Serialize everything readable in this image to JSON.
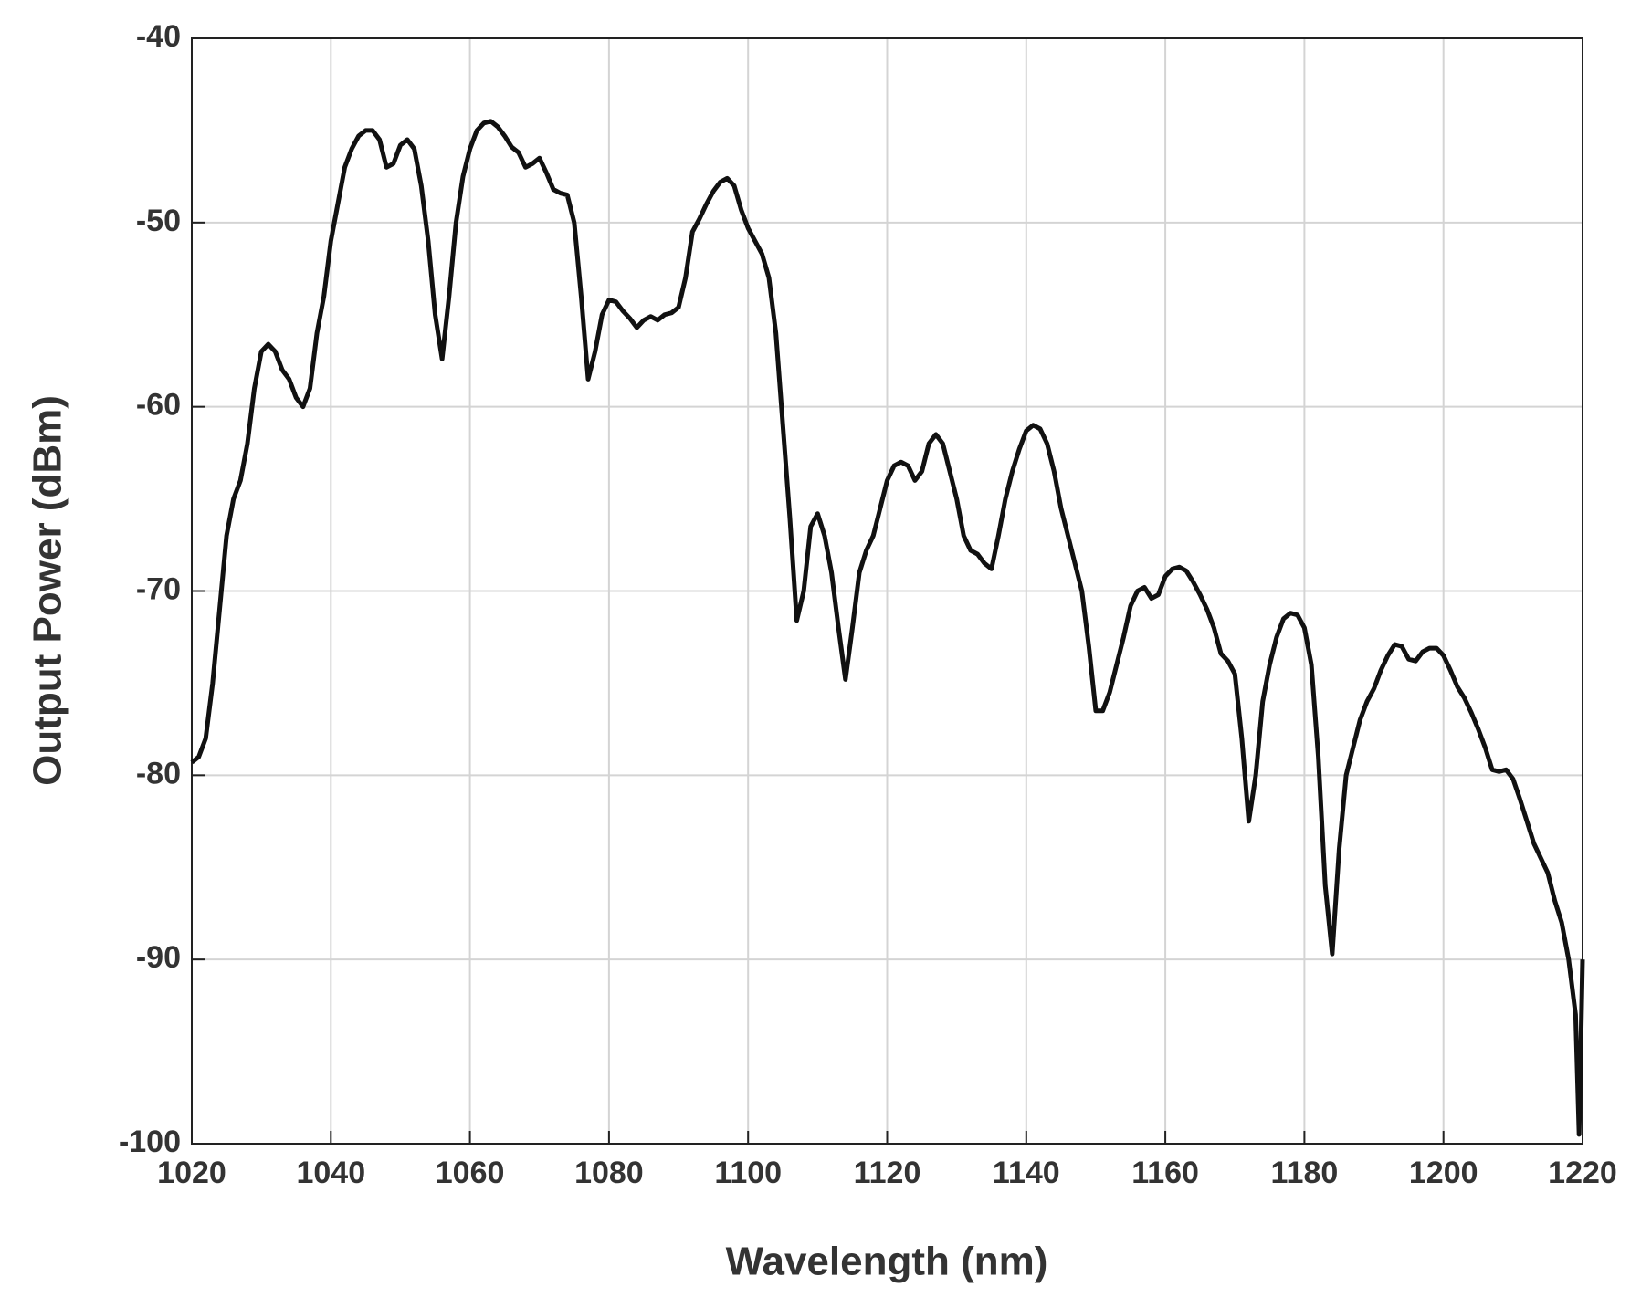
{
  "chart_data": {
    "type": "line",
    "xlabel": "Wavelength (nm)",
    "ylabel": "Output Power (dBm)",
    "x": [
      1020,
      1021,
      1022,
      1023,
      1024,
      1025,
      1026,
      1027,
      1028,
      1029,
      1030,
      1031,
      1032,
      1033,
      1034,
      1035,
      1036,
      1037,
      1038,
      1039,
      1040,
      1041,
      1042,
      1043,
      1044,
      1045,
      1046,
      1047,
      1048,
      1049,
      1050,
      1051,
      1052,
      1053,
      1054,
      1055,
      1056,
      1057,
      1058,
      1059,
      1060,
      1061,
      1062,
      1063,
      1064,
      1065,
      1066,
      1067,
      1068,
      1069,
      1070,
      1071,
      1072,
      1073,
      1074,
      1075,
      1076,
      1077,
      1078,
      1079,
      1080,
      1081,
      1082,
      1083,
      1084,
      1085,
      1086,
      1087,
      1088,
      1089,
      1090,
      1091,
      1092,
      1093,
      1094,
      1095,
      1096,
      1097,
      1098,
      1099,
      1100,
      1101,
      1102,
      1103,
      1104,
      1105,
      1106,
      1107,
      1108,
      1109,
      1110,
      1111,
      1112,
      1113,
      1114,
      1115,
      1116,
      1117,
      1118,
      1119,
      1120,
      1121,
      1122,
      1123,
      1124,
      1125,
      1126,
      1127,
      1128,
      1129,
      1130,
      1131,
      1132,
      1133,
      1134,
      1135,
      1136,
      1137,
      1138,
      1139,
      1140,
      1141,
      1142,
      1143,
      1144,
      1145,
      1146,
      1147,
      1148,
      1149,
      1150,
      1151,
      1152,
      1153,
      1154,
      1155,
      1156,
      1157,
      1158,
      1159,
      1160,
      1161,
      1162,
      1163,
      1164,
      1165,
      1166,
      1167,
      1168,
      1169,
      1170,
      1171,
      1172,
      1173,
      1174,
      1175,
      1176,
      1177,
      1178,
      1179,
      1180,
      1181,
      1182,
      1183,
      1184,
      1185,
      1186,
      1187,
      1188,
      1189,
      1190,
      1191,
      1192,
      1193,
      1194,
      1195,
      1196,
      1197,
      1198,
      1199,
      1200,
      1201,
      1202,
      1203,
      1204,
      1205,
      1206,
      1207,
      1208,
      1209,
      1210,
      1211,
      1212,
      1213,
      1214,
      1215,
      1216,
      1217,
      1218,
      1219,
      1219.5,
      1220
    ],
    "series": [
      {
        "color": "#111111",
        "values": [
          -79.3,
          -79,
          -78,
          -75,
          -71,
          -67,
          -65,
          -64,
          -62,
          -59,
          -57,
          -56.6,
          -57,
          -58,
          -58.5,
          -59.5,
          -60,
          -59,
          -56,
          -54,
          -51,
          -49,
          -47,
          -46,
          -45.3,
          -45,
          -45,
          -45.5,
          -47,
          -46.8,
          -45.8,
          -45.5,
          -46,
          -48,
          -51,
          -55,
          -57.4,
          -54,
          -50,
          -47.5,
          -46,
          -45,
          -44.6,
          -44.5,
          -44.8,
          -45.3,
          -45.9,
          -46.2,
          -47,
          -46.8,
          -46.5,
          -47.3,
          -48.2,
          -48.4,
          -48.5,
          -50,
          -54,
          -58.5,
          -57,
          -55,
          -54.2,
          -54.3,
          -54.8,
          -55.2,
          -55.7,
          -55.3,
          -55.1,
          -55.3,
          -55,
          -54.9,
          -54.6,
          -53,
          -50.5,
          -49.8,
          -49,
          -48.3,
          -47.8,
          -47.6,
          -48,
          -49.3,
          -50.3,
          -51,
          -51.7,
          -53,
          -56,
          -61,
          -66,
          -71.6,
          -70,
          -66.5,
          -65.8,
          -67,
          -69,
          -72,
          -74.8,
          -72,
          -69,
          -67.8,
          -67,
          -65.5,
          -64,
          -63.2,
          -63,
          -63.2,
          -64,
          -63.5,
          -62,
          -61.5,
          -62,
          -63.5,
          -65,
          -67,
          -67.8,
          -68,
          -68.5,
          -68.8,
          -67,
          -65,
          -63.5,
          -62.3,
          -61.3,
          -61,
          -61.2,
          -62,
          -63.5,
          -65.5,
          -67,
          -68.5,
          -70,
          -73,
          -76.5,
          -76.5,
          -75.5,
          -74,
          -72.5,
          -70.8,
          -70,
          -69.8,
          -70.4,
          -70.2,
          -69.2,
          -68.8,
          -68.7,
          -68.9,
          -69.5,
          -70.2,
          -71,
          -72,
          -73.4,
          -73.8,
          -74.5,
          -78,
          -82.5,
          -80,
          -76,
          -74,
          -72.5,
          -71.5,
          -71.2,
          -71.3,
          -72,
          -74,
          -79,
          -86,
          -89.7,
          -84,
          -80,
          -78.5,
          -77,
          -76,
          -75.3,
          -74.3,
          -73.5,
          -72.9,
          -73,
          -73.7,
          -73.8,
          -73.3,
          -73.1,
          -73.1,
          -73.5,
          -74.3,
          -75.2,
          -75.8,
          -76.6,
          -77.5,
          -78.5,
          -79.7,
          -79.8,
          -79.7,
          -80.2,
          -81.3,
          -82.5,
          -83.7,
          -84.5,
          -85.3,
          -86.8,
          -88,
          -90,
          -93,
          -99.5,
          -90
        ]
      }
    ],
    "xlim": [
      1020,
      1220
    ],
    "ylim": [
      -100,
      -40
    ],
    "xticks": [
      1020,
      1040,
      1060,
      1080,
      1100,
      1120,
      1140,
      1160,
      1180,
      1200,
      1220
    ],
    "yticks": [
      -100,
      -90,
      -80,
      -70,
      -60,
      -50,
      -40
    ],
    "grid": true
  }
}
